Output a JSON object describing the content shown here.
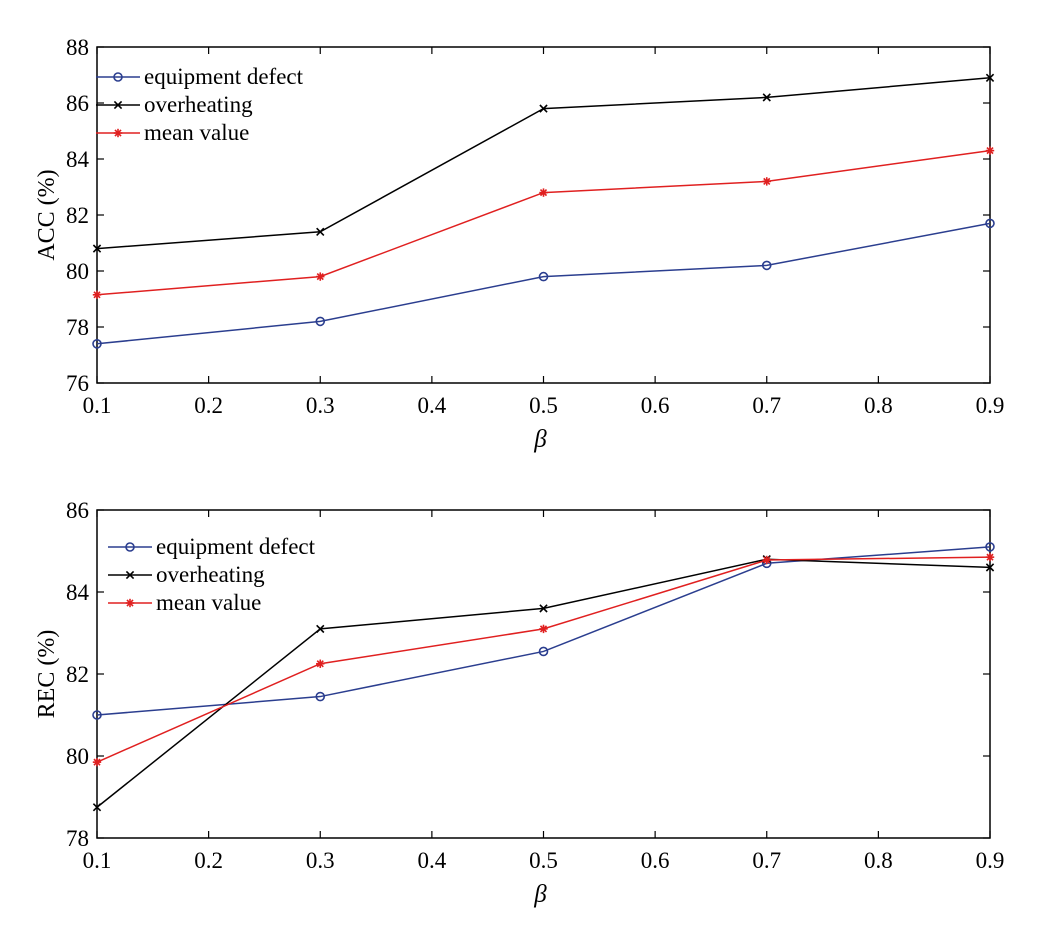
{
  "chart_data": [
    {
      "type": "line",
      "x": [
        0.1,
        0.3,
        0.5,
        0.7,
        0.9
      ],
      "xlim": [
        0.1,
        0.9
      ],
      "xticks": [
        "0.1",
        "0.2",
        "0.3",
        "0.4",
        "0.5",
        "0.6",
        "0.7",
        "0.8",
        "0.9"
      ],
      "xlabel": "β",
      "ylabel": "ACC (%)",
      "ylim": [
        76,
        88
      ],
      "yticks": [
        "76",
        "78",
        "80",
        "82",
        "84",
        "86",
        "88"
      ],
      "grid": false,
      "legend_position": "top-left",
      "series": [
        {
          "name": "equipment defect",
          "marker": "circle",
          "color": "#2b3e8f",
          "values": [
            77.4,
            78.2,
            79.8,
            80.2,
            81.7
          ]
        },
        {
          "name": "overheating",
          "marker": "x",
          "color": "#000000",
          "values": [
            80.8,
            81.4,
            85.8,
            86.2,
            86.9
          ]
        },
        {
          "name": "mean value",
          "marker": "star",
          "color": "#e02020",
          "values": [
            79.15,
            79.8,
            82.8,
            83.2,
            84.3
          ]
        }
      ]
    },
    {
      "type": "line",
      "x": [
        0.1,
        0.3,
        0.5,
        0.7,
        0.9
      ],
      "xlim": [
        0.1,
        0.9
      ],
      "xticks": [
        "0.1",
        "0.2",
        "0.3",
        "0.4",
        "0.5",
        "0.6",
        "0.7",
        "0.8",
        "0.9"
      ],
      "xlabel": "β",
      "ylabel": "REC (%)",
      "ylim": [
        78,
        86
      ],
      "yticks": [
        "78",
        "80",
        "82",
        "84",
        "86"
      ],
      "grid": false,
      "legend_position": "top-left",
      "series": [
        {
          "name": "equipment defect",
          "marker": "circle",
          "color": "#2b3e8f",
          "values": [
            81.0,
            81.45,
            82.55,
            84.7,
            85.1
          ]
        },
        {
          "name": "overheating",
          "marker": "x",
          "color": "#000000",
          "values": [
            78.75,
            83.1,
            83.6,
            84.8,
            84.6
          ]
        },
        {
          "name": "mean value",
          "marker": "star",
          "color": "#e02020",
          "values": [
            79.85,
            82.25,
            83.1,
            84.78,
            84.85
          ]
        }
      ]
    }
  ]
}
